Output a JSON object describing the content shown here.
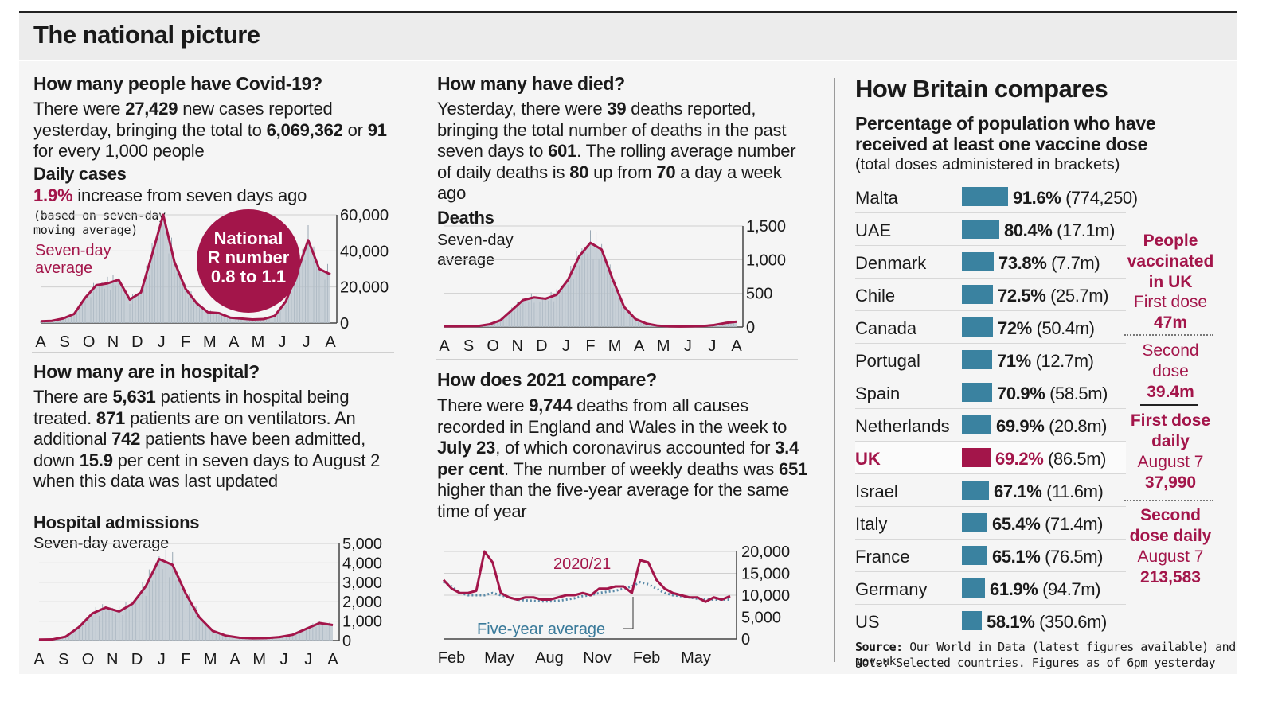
{
  "title": "The national picture",
  "cases": {
    "heading": "How many people have Covid-19?",
    "text": {
      "p1": "There were ",
      "new": "27,429",
      "p2": " new cases reported yesterday, bringing the total to ",
      "total": "6,069,362",
      "p3": " or ",
      "per": "91",
      "p4": " for every 1,000 people"
    },
    "sub": "Daily cases",
    "increase": "1.9%",
    "increase_text": " increase from seven days ago",
    "note": [
      "(based on seven-day",
      "moving average)"
    ],
    "series_label": [
      "Seven-day",
      "average"
    ],
    "r_badge": [
      "National",
      "R number",
      "0.8 to 1.1"
    ]
  },
  "deaths": {
    "heading": "How many have died?",
    "text": {
      "p1": "Yesterday, there were ",
      "num": "39",
      "p2": " deaths reported, bringing the total number of deaths in the past seven days to ",
      "week": "601",
      "p3": ". The rolling average number of daily deaths is ",
      "avg": "80",
      "p4": " up from ",
      "prev": "70",
      "p5": " a day a week ago"
    },
    "sub": "Deaths",
    "series_label": [
      "Seven-day",
      "average"
    ]
  },
  "hospital": {
    "heading": "How many are in hospital?",
    "text": {
      "p1": "There are ",
      "patients": "5,631",
      "p2": " patients in hospital being treated. ",
      "vent": "871",
      "p3": " patients are on ventilators. An additional ",
      "admitted": "742",
      "p4": " patients have been admitted, down ",
      "down": "15.9",
      "p5": " per cent in seven days to August 2 when this data was last updated"
    },
    "sub": "Hospital admissions",
    "series_label": "Seven-day average"
  },
  "compare2021": {
    "heading": "How does 2021 compare?",
    "text": {
      "p1": "There were ",
      "num": "9,744",
      "p2": " deaths from all causes recorded in England and Wales in the week to ",
      "date": "July 23",
      "p3": ", of which coronavirus accounted for ",
      "pct": "3.4 per cent",
      "p4": ". The number of weekly deaths was ",
      "higher": "651",
      "p5": " higher than the five-year average for the same time of year"
    }
  },
  "britain": {
    "heading": "How Britain compares",
    "subheading": [
      "Percentage of population who have",
      "received at least one vaccine dose"
    ],
    "note": "(total doses administered in brackets)",
    "rows": [
      {
        "country": "Malta",
        "pct": "91.6%",
        "doses": "(774,250)",
        "value": 91.6
      },
      {
        "country": "UAE",
        "pct": "80.4%",
        "doses": "(17.1m)",
        "value": 80.4
      },
      {
        "country": "Denmark",
        "pct": "73.8%",
        "doses": "(7.7m)",
        "value": 73.8
      },
      {
        "country": "Chile",
        "pct": "72.5%",
        "doses": "(25.7m)",
        "value": 72.5
      },
      {
        "country": "Canada",
        "pct": "72%",
        "doses": "(50.4m)",
        "value": 72
      },
      {
        "country": "Portugal",
        "pct": "71%",
        "doses": "(12.7m)",
        "value": 71
      },
      {
        "country": "Spain",
        "pct": "70.9%",
        "doses": "(58.5m)",
        "value": 70.9
      },
      {
        "country": "Netherlands",
        "pct": "69.9%",
        "doses": "(20.8m)",
        "value": 69.9
      },
      {
        "country": "UK",
        "pct": "69.2%",
        "doses": "(86.5m)",
        "value": 69.2
      },
      {
        "country": "Israel",
        "pct": "67.1%",
        "doses": "(11.6m)",
        "value": 67.1
      },
      {
        "country": "Italy",
        "pct": "65.4%",
        "doses": "(71.4m)",
        "value": 65.4
      },
      {
        "country": "France",
        "pct": "65.1%",
        "doses": "(76.5m)",
        "value": 65.1
      },
      {
        "country": "Germany",
        "pct": "61.9%",
        "doses": "(94.7m)",
        "value": 61.9
      },
      {
        "country": "US",
        "pct": "58.1%",
        "doses": "(350.6m)",
        "value": 58.1
      }
    ],
    "side": {
      "head": [
        "People",
        "vaccinated",
        "in UK"
      ],
      "first_label": "First dose",
      "first_val": "47m",
      "second_label": [
        "Second",
        "dose"
      ],
      "second_val": "39.4m",
      "fdd_label": [
        "First dose",
        "daily"
      ],
      "fdd_date": "August 7",
      "fdd_val": "37,990",
      "sdd_label": [
        "Second",
        "dose daily"
      ],
      "sdd_date": "August 7",
      "sdd_val": "213,583"
    },
    "source_label": "Source:",
    "source": " Our World in Data (latest figures available) and gov.uk",
    "footnote": "Note: Selected countries. Figures as of 6pm yesterday"
  },
  "colors": {
    "accent": "#a3154a",
    "bar": "#3a82a0",
    "uk_bar": "#a3154a",
    "area": "#b8c3cc"
  },
  "chart_data": [
    {
      "id": "daily_cases",
      "type": "area",
      "x_labels": [
        "A",
        "S",
        "O",
        "N",
        "D",
        "J",
        "F",
        "M",
        "A",
        "M",
        "J",
        "J",
        "A"
      ],
      "yticks": [
        "60,000",
        "40,000",
        "20,000",
        "0"
      ],
      "ylim": [
        0,
        60000
      ],
      "values": [
        1000,
        1200,
        2500,
        5000,
        14000,
        21000,
        22000,
        24000,
        13000,
        17000,
        38000,
        60000,
        34000,
        19000,
        11000,
        6000,
        5500,
        3000,
        2500,
        2000,
        2200,
        4000,
        12000,
        28000,
        46000,
        30000,
        27000
      ]
    },
    {
      "id": "deaths",
      "type": "area",
      "x_labels": [
        "A",
        "S",
        "O",
        "N",
        "D",
        "J",
        "F",
        "M",
        "A",
        "M",
        "J",
        "J",
        "A"
      ],
      "yticks": [
        "1,500",
        "1,000",
        "500",
        "0"
      ],
      "ylim": [
        0,
        1500
      ],
      "values": [
        10,
        10,
        12,
        15,
        40,
        100,
        250,
        400,
        440,
        420,
        480,
        700,
        1050,
        1250,
        1150,
        700,
        300,
        120,
        50,
        20,
        10,
        8,
        10,
        15,
        30,
        60,
        80
      ]
    },
    {
      "id": "hospital_admissions",
      "type": "area",
      "x_labels": [
        "A",
        "S",
        "O",
        "N",
        "D",
        "J",
        "F",
        "M",
        "A",
        "M",
        "J",
        "J",
        "A"
      ],
      "yticks": [
        "5,000",
        "4,000",
        "3,000",
        "2,000",
        "1,000",
        "0"
      ],
      "ylim": [
        0,
        5000
      ],
      "values": [
        50,
        60,
        200,
        700,
        1400,
        1700,
        1500,
        1900,
        2800,
        4200,
        3900,
        2400,
        1200,
        500,
        250,
        150,
        120,
        130,
        180,
        300,
        600,
        900,
        800
      ]
    },
    {
      "id": "weekly_deaths_2021",
      "type": "line",
      "x_labels": [
        "Feb",
        "May",
        "Aug",
        "Nov",
        "Feb",
        "May"
      ],
      "yticks": [
        "20,000",
        "15,000",
        "10,000",
        "5,000",
        "0"
      ],
      "ylim": [
        0,
        20000
      ],
      "series": [
        {
          "name": "2020/21",
          "values": [
            13500,
            11500,
            10500,
            10500,
            11000,
            20000,
            17500,
            10500,
            9500,
            9000,
            9500,
            9500,
            9000,
            9000,
            9500,
            10000,
            10000,
            10500,
            10000,
            11500,
            11500,
            12000,
            12000,
            10500,
            18000,
            17500,
            13500,
            11500,
            10500,
            10000,
            9500,
            9500,
            8500,
            9500,
            9000,
            9800
          ]
        },
        {
          "name": "Five-year average",
          "values": [
            13000,
            12000,
            10500,
            10000,
            10000,
            10000,
            10500,
            10000,
            9500,
            9000,
            8800,
            8700,
            8600,
            8600,
            8700,
            9000,
            9300,
            9800,
            10000,
            10500,
            10800,
            11000,
            11500,
            12000,
            13000,
            12500,
            11500,
            10500,
            10000,
            9800,
            9500,
            9200,
            9000,
            9000,
            9000,
            9000
          ]
        }
      ]
    },
    {
      "id": "vaccine_comparison",
      "type": "bar",
      "categories": [
        "Malta",
        "UAE",
        "Denmark",
        "Chile",
        "Canada",
        "Portugal",
        "Spain",
        "Netherlands",
        "UK",
        "Israel",
        "Italy",
        "France",
        "Germany",
        "US"
      ],
      "values": [
        91.6,
        80.4,
        73.8,
        72.5,
        72,
        71,
        70.9,
        69.9,
        69.2,
        67.1,
        65.4,
        65.1,
        61.9,
        58.1
      ]
    }
  ]
}
